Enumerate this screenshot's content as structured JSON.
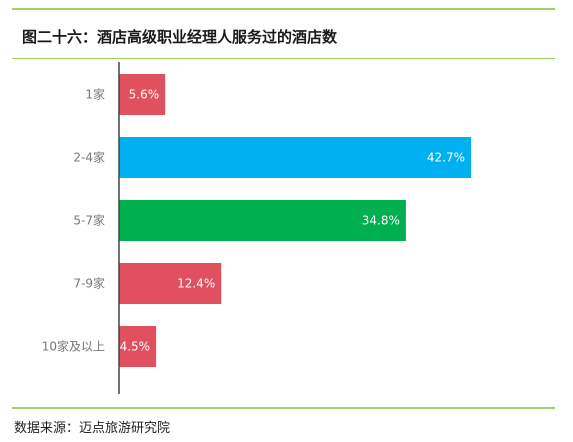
{
  "header": {
    "title": "图二十六：酒店高级职业经理人服务过的酒店数"
  },
  "footer": {
    "source": "数据来源：迈点旅游研究院"
  },
  "chart_data": {
    "type": "bar",
    "orientation": "horizontal",
    "title": "图二十六：酒店高级职业经理人服务过的酒店数",
    "categories": [
      "1家",
      "2-4家",
      "5-7家",
      "7-9家",
      "10家及以上"
    ],
    "values": [
      5.6,
      42.7,
      34.8,
      12.4,
      4.5
    ],
    "data_labels": [
      "5.6%",
      "42.7%",
      "34.8%",
      "12.4%",
      "4.5%"
    ],
    "colors": [
      "#e0505e",
      "#00b0f0",
      "#00b050",
      "#e0505e",
      "#e0505e"
    ],
    "xlim": [
      0,
      45
    ],
    "grid": false,
    "legend": "none"
  }
}
